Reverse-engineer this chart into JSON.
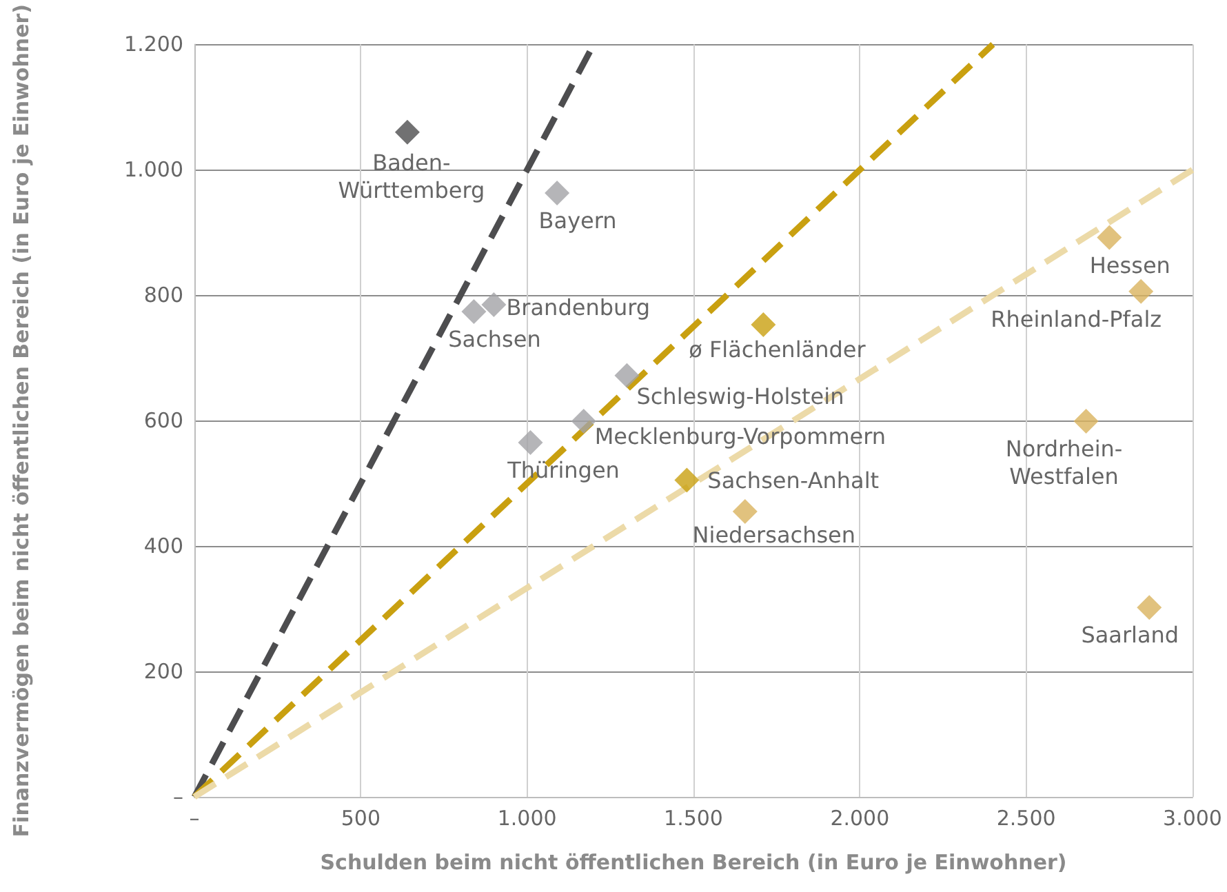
{
  "chart_data": {
    "type": "scatter",
    "xlabel": "Schulden beim nicht öffentlichen Bereich (in Euro je Einwohner)",
    "ylabel": "Finanzvermögen beim nicht öffentlichen Bereich (in Euro je Einwohner)",
    "xlim": [
      0,
      3000
    ],
    "xticks": [
      {
        "value": 0,
        "label": "–"
      },
      500,
      {
        "value": 1000,
        "label": "1.000"
      },
      {
        "value": 1500,
        "label": "1.500"
      },
      {
        "value": 2000,
        "label": "2.000"
      },
      {
        "value": 2500,
        "label": "2.500"
      },
      {
        "value": 3000,
        "label": "3.000"
      }
    ],
    "ylim": [
      0,
      1200
    ],
    "yticks": [
      {
        "value": 0,
        "label": "–"
      },
      200,
      400,
      600,
      800,
      {
        "value": 1000,
        "label": "1.000"
      },
      {
        "value": 1200,
        "label": "1.200"
      }
    ],
    "grid": true,
    "marker": "diamond",
    "series": [
      {
        "type": "line",
        "color": "#4d4d4f",
        "line_style": "dashed",
        "marker": "none",
        "x": [
          0,
          1200
        ],
        "values": [
          0,
          1200
        ]
      },
      {
        "type": "line",
        "color": "#c9a010",
        "line_style": "dashed",
        "marker": "none",
        "x": [
          0,
          2400
        ],
        "values": [
          0,
          1200
        ]
      },
      {
        "type": "line",
        "color": "#ecdaa8",
        "line_style": "dashed",
        "marker": "none",
        "x": [
          0,
          3000
        ],
        "values": [
          0,
          1000
        ]
      },
      {
        "color": "#4d4d4f",
        "x": [
          640
        ],
        "values": [
          1060
        ]
      },
      {
        "color": "#a3a3a6",
        "x": [
          1090,
          900,
          840,
          1300,
          1170,
          1010
        ],
        "values": [
          963,
          785,
          774,
          672,
          599,
          565
        ]
      },
      {
        "color": "#c9a010",
        "x": [
          1710,
          1480
        ],
        "values": [
          753,
          505
        ]
      },
      {
        "color": "#dab35e",
        "x": [
          1655,
          2750,
          2845,
          2680,
          2870
        ],
        "values": [
          455,
          892,
          806,
          599,
          302
        ]
      }
    ],
    "annotations": [
      {
        "text": "Baden-Württemberg",
        "x": 640,
        "y": 1060
      },
      {
        "text": "Bayern",
        "x": 1090,
        "y": 963
      },
      {
        "text": "Brandenburg",
        "x": 900,
        "y": 785
      },
      {
        "text": "Sachsen",
        "x": 840,
        "y": 774
      },
      {
        "text": "Schleswig-Holstein",
        "x": 1300,
        "y": 672
      },
      {
        "text": "Mecklenburg-Vorpommern",
        "x": 1170,
        "y": 599
      },
      {
        "text": "Thüringen",
        "x": 1010,
        "y": 565
      },
      {
        "text": "ø Flächenländer",
        "x": 1710,
        "y": 753
      },
      {
        "text": "Sachsen-Anhalt",
        "x": 1480,
        "y": 505
      },
      {
        "text": "Niedersachsen",
        "x": 1655,
        "y": 455
      },
      {
        "text": "Hessen",
        "x": 2750,
        "y": 892
      },
      {
        "text": "Rheinland-Pfalz",
        "x": 2845,
        "y": 806
      },
      {
        "text": "Nordrhein-Westfalen",
        "x": 2680,
        "y": 599
      },
      {
        "text": "Saarland",
        "x": 2870,
        "y": 302
      }
    ]
  }
}
